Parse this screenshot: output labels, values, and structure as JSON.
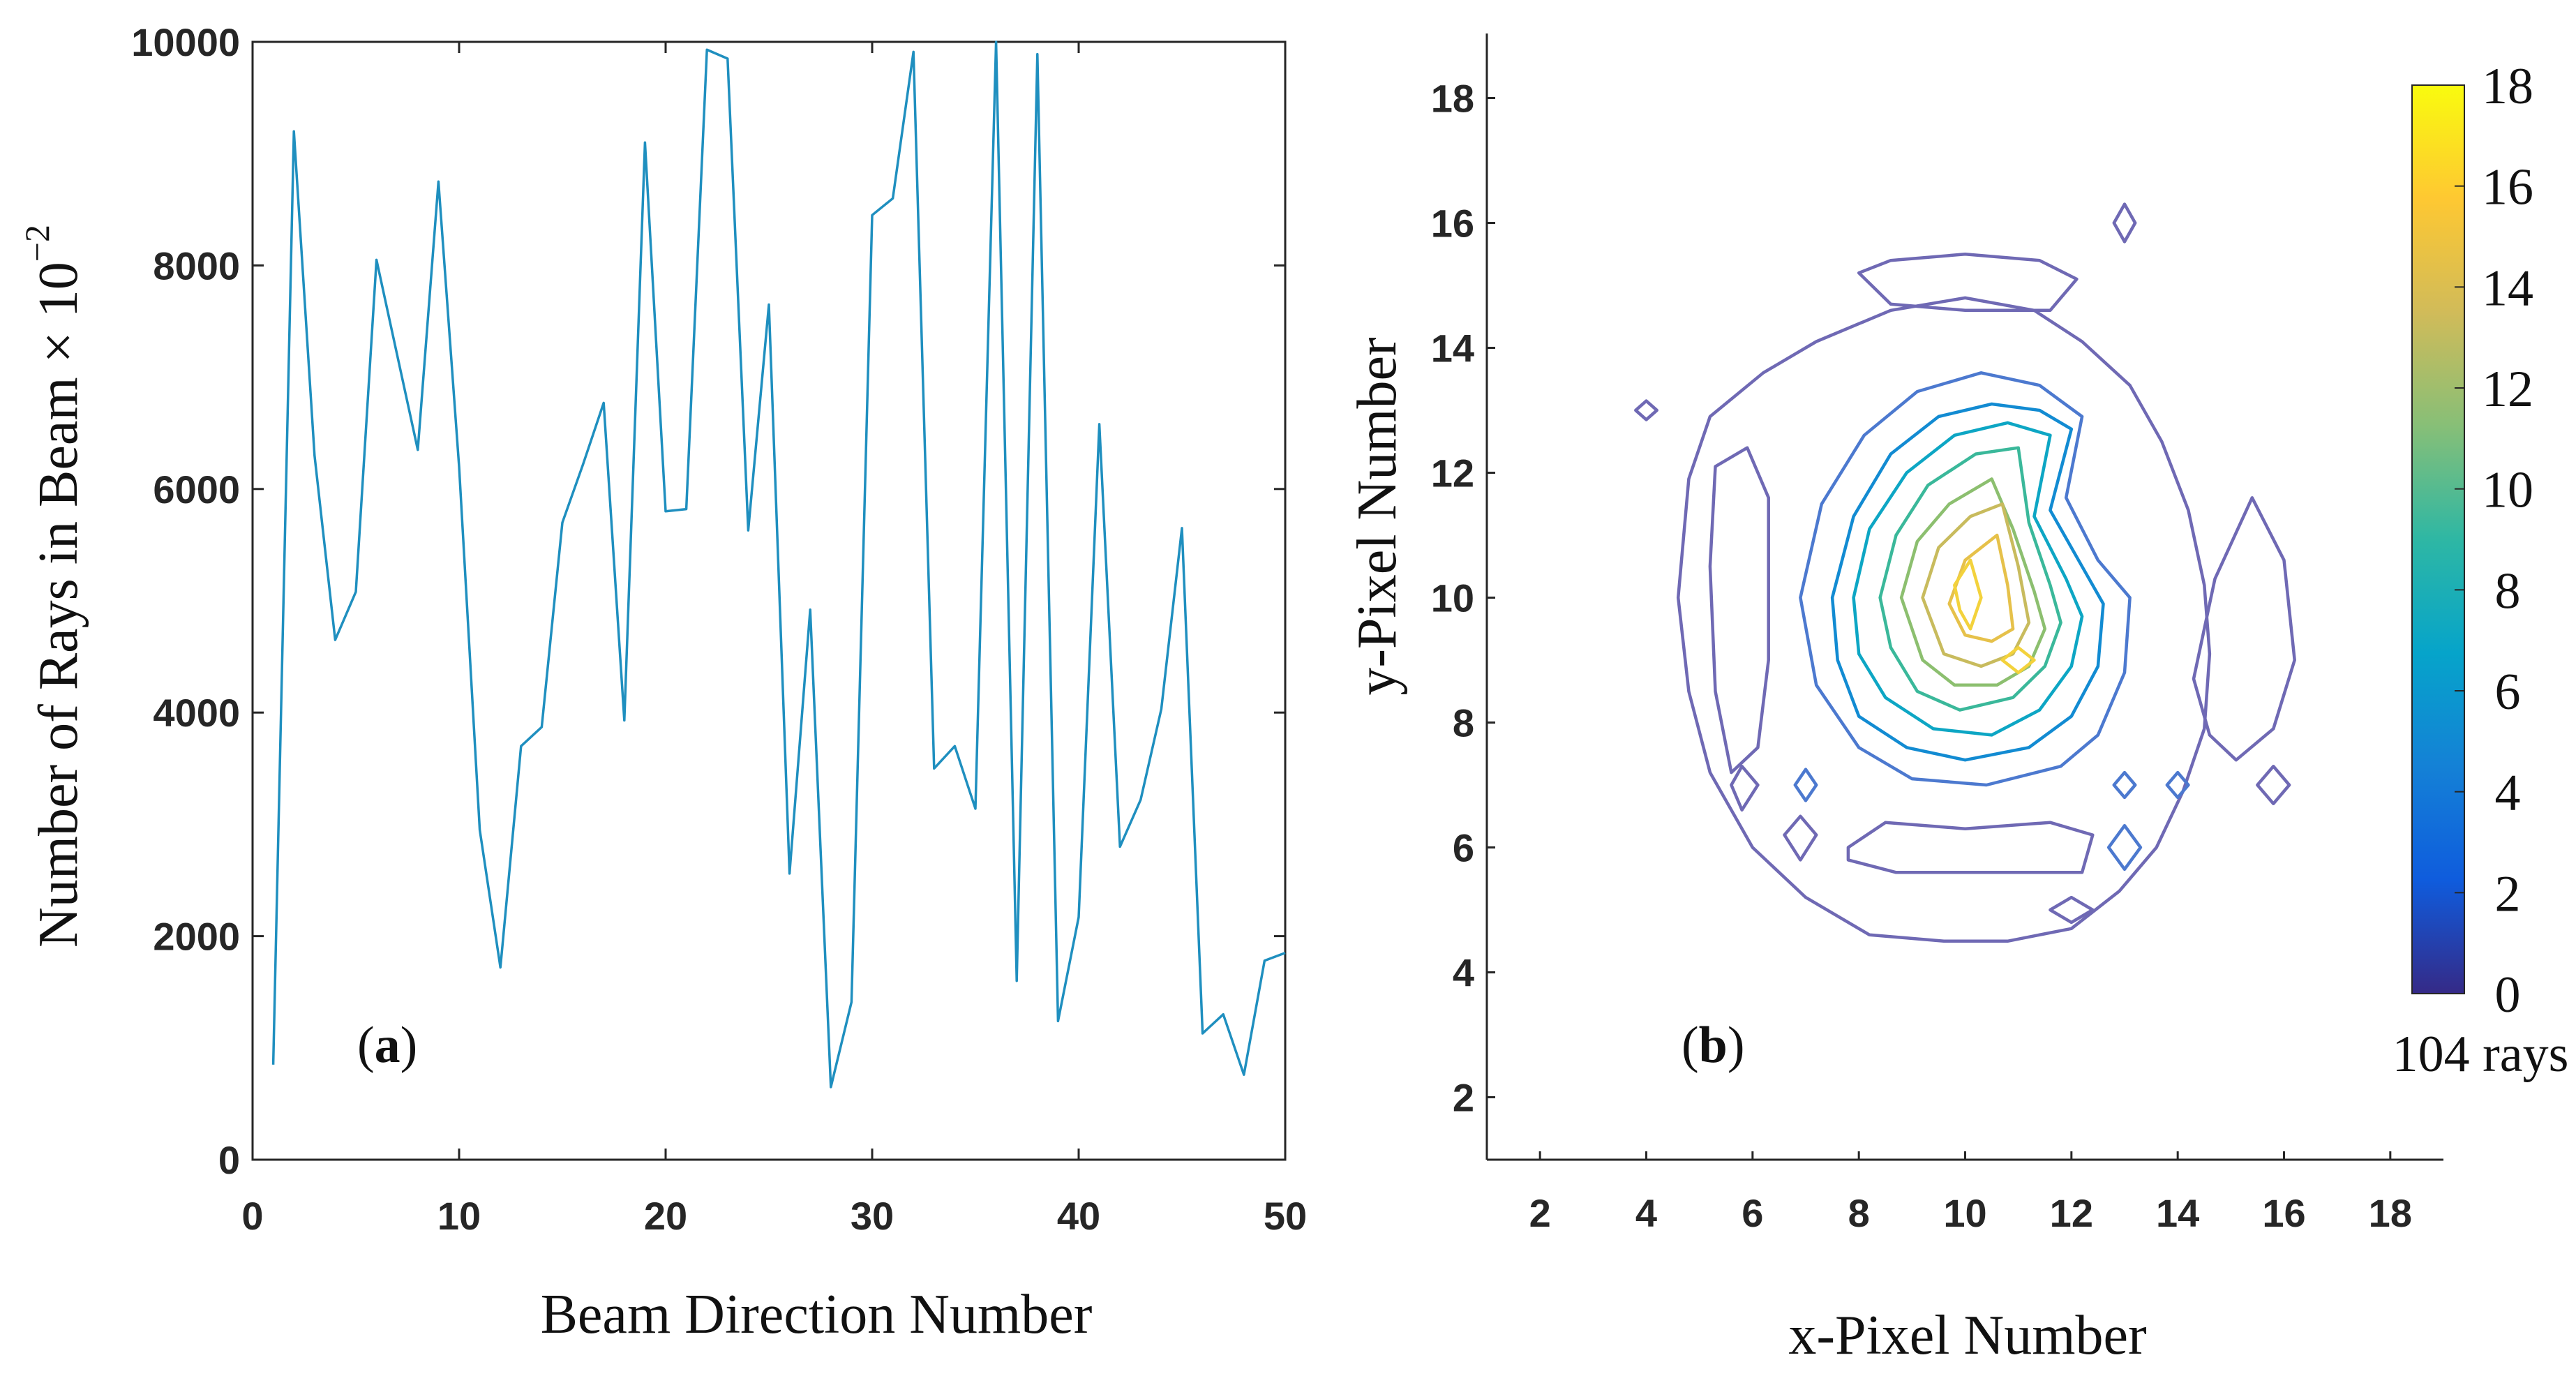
{
  "figure": {
    "panel_a": {
      "label_open": "(",
      "label_letter": "a",
      "label_close": ")"
    },
    "panel_b": {
      "label_open": "(",
      "label_letter": "b",
      "label_close": ")"
    }
  },
  "chart_data": [
    {
      "type": "line",
      "title": "",
      "xlabel": "Beam Direction Number",
      "ylabel": "Number of Rays in Beam × 10",
      "ylabel_exponent": "−2",
      "xlim": [
        0,
        50
      ],
      "ylim": [
        0,
        10000
      ],
      "xticks": [
        0,
        10,
        20,
        30,
        40,
        50
      ],
      "yticks": [
        0,
        2000,
        4000,
        6000,
        8000,
        10000
      ],
      "grid": false,
      "line_color": "#1f8fbf",
      "series": [
        {
          "name": "rays",
          "x": [
            1,
            2,
            3,
            4,
            5,
            6,
            7,
            8,
            9,
            10,
            11,
            12,
            13,
            14,
            15,
            16,
            17,
            18,
            19,
            20,
            21,
            22,
            23,
            24,
            25,
            26,
            27,
            28,
            29,
            30,
            31,
            32,
            33,
            34,
            35,
            36,
            37,
            38,
            39,
            40,
            41,
            42,
            43,
            44,
            45,
            46,
            47,
            48,
            49,
            50
          ],
          "values": [
            850,
            9200,
            6300,
            4650,
            5080,
            8050,
            7200,
            6350,
            8750,
            6200,
            2950,
            1720,
            3700,
            3870,
            5700,
            6220,
            6770,
            3930,
            9100,
            5800,
            5820,
            9930,
            9850,
            5630,
            7650,
            2560,
            4920,
            650,
            1410,
            8450,
            8600,
            9910,
            3500,
            3700,
            3140,
            10000,
            1600,
            9890,
            1240,
            2170,
            6580,
            2800,
            3220,
            4030,
            5650,
            1130,
            1300,
            760,
            1780,
            1850
          ]
        }
      ]
    },
    {
      "type": "contour",
      "title": "",
      "xlabel": "x-Pixel Number",
      "ylabel": "y-Pixel Number",
      "xlim": [
        1,
        19
      ],
      "ylim": [
        1,
        19
      ],
      "xticks": [
        2,
        4,
        6,
        8,
        10,
        12,
        14,
        16,
        18
      ],
      "yticks": [
        2,
        4,
        6,
        8,
        10,
        12,
        14,
        16,
        18
      ],
      "grid": false,
      "colormap": "parula",
      "colorbar": {
        "range": [
          0,
          18
        ],
        "ticks": [
          0,
          2,
          4,
          6,
          8,
          10,
          12,
          14,
          16,
          18
        ],
        "unit_label": "104 rays",
        "colors": [
          "#352a87",
          "#0f5cdd",
          "#1481d6",
          "#06a4ca",
          "#2eb7a4",
          "#87bf77",
          "#d1bb59",
          "#fec832",
          "#f9fb0e"
        ]
      },
      "levels": [
        {
          "level": 1,
          "color": "#6f69b4",
          "rings": [
            [
              [
                4.8,
                11.9
              ],
              [
                5.2,
                12.9
              ],
              [
                6.2,
                13.6
              ],
              [
                7.2,
                14.1
              ],
              [
                8.6,
                14.6
              ],
              [
                10,
                14.8
              ],
              [
                11.3,
                14.6
              ],
              [
                12.2,
                14.1
              ],
              [
                13.1,
                13.4
              ],
              [
                13.7,
                12.5
              ],
              [
                14.2,
                11.4
              ],
              [
                14.5,
                10.2
              ],
              [
                14.6,
                9.1
              ],
              [
                14.5,
                7.9
              ],
              [
                14.1,
                6.9
              ],
              [
                13.6,
                6
              ],
              [
                12.9,
                5.3
              ],
              [
                12,
                4.7
              ],
              [
                10.8,
                4.5
              ],
              [
                9.6,
                4.5
              ],
              [
                8.2,
                4.6
              ],
              [
                7,
                5.2
              ],
              [
                6,
                6
              ],
              [
                5.2,
                7.2
              ],
              [
                4.8,
                8.5
              ],
              [
                4.6,
                10
              ]
            ],
            [
              [
                8,
                15.2
              ],
              [
                8.6,
                15.4
              ],
              [
                10,
                15.5
              ],
              [
                11.4,
                15.4
              ],
              [
                12.1,
                15.1
              ],
              [
                11.6,
                14.6
              ],
              [
                10,
                14.6
              ],
              [
                8.6,
                14.7
              ]
            ],
            [
              [
                5.3,
                12.1
              ],
              [
                5.9,
                12.4
              ],
              [
                6.3,
                11.6
              ],
              [
                6.3,
                9
              ],
              [
                6.1,
                7.6
              ],
              [
                5.6,
                7.2
              ],
              [
                5.3,
                8.5
              ],
              [
                5.2,
                10.5
              ]
            ],
            [
              [
                14.3,
                8.7
              ],
              [
                14.7,
                10.3
              ],
              [
                15.4,
                11.6
              ],
              [
                16,
                10.6
              ],
              [
                16.2,
                9
              ],
              [
                15.8,
                7.9
              ],
              [
                15.1,
                7.4
              ],
              [
                14.6,
                7.8
              ]
            ],
            [
              [
                7.8,
                6
              ],
              [
                8.5,
                6.4
              ],
              [
                10,
                6.3
              ],
              [
                11.6,
                6.4
              ],
              [
                12.4,
                6.2
              ],
              [
                12.2,
                5.6
              ],
              [
                10.5,
                5.6
              ],
              [
                8.7,
                5.6
              ],
              [
                7.8,
                5.8
              ]
            ],
            [
              [
                11.6,
                5
              ],
              [
                12,
                5.2
              ],
              [
                12.4,
                5
              ],
              [
                12,
                4.8
              ]
            ],
            [
              [
                12.8,
                16
              ],
              [
                13,
                16.3
              ],
              [
                13.2,
                16
              ],
              [
                13,
                15.7
              ]
            ],
            [
              [
                3.8,
                13
              ],
              [
                4,
                13.15
              ],
              [
                4.2,
                13
              ],
              [
                4,
                12.85
              ]
            ],
            [
              [
                5.6,
                7
              ],
              [
                5.8,
                7.3
              ],
              [
                6.1,
                7
              ],
              [
                5.8,
                6.6
              ]
            ],
            [
              [
                6.6,
                6.2
              ],
              [
                6.9,
                6.5
              ],
              [
                7.2,
                6.2
              ],
              [
                6.9,
                5.8
              ]
            ],
            [
              [
                15.5,
                7
              ],
              [
                15.8,
                7.3
              ],
              [
                16.1,
                7
              ],
              [
                15.8,
                6.7
              ]
            ]
          ]
        },
        {
          "level": 3,
          "color": "#4c79cf",
          "rings": [
            [
              [
                6.9,
                10
              ],
              [
                7.3,
                11.5
              ],
              [
                8.1,
                12.6
              ],
              [
                9.1,
                13.3
              ],
              [
                10.3,
                13.6
              ],
              [
                11.4,
                13.4
              ],
              [
                12.2,
                12.9
              ],
              [
                11.9,
                11.6
              ],
              [
                12.5,
                10.6
              ],
              [
                13.1,
                10
              ],
              [
                13,
                8.8
              ],
              [
                12.5,
                7.8
              ],
              [
                11.8,
                7.3
              ],
              [
                10.4,
                7
              ],
              [
                9,
                7.1
              ],
              [
                8,
                7.6
              ],
              [
                7.2,
                8.6
              ]
            ],
            [
              [
                6.8,
                7
              ],
              [
                7,
                7.25
              ],
              [
                7.2,
                7
              ],
              [
                7,
                6.75
              ]
            ],
            [
              [
                12.8,
                7
              ],
              [
                13,
                7.2
              ],
              [
                13.2,
                7
              ],
              [
                13,
                6.8
              ]
            ],
            [
              [
                13.8,
                7
              ],
              [
                14,
                7.2
              ],
              [
                14.2,
                7
              ],
              [
                14,
                6.8
              ]
            ],
            [
              [
                12.7,
                6
              ],
              [
                13,
                6.35
              ],
              [
                13.3,
                6
              ],
              [
                13,
                5.65
              ]
            ]
          ]
        },
        {
          "level": 5,
          "color": "#128bd2",
          "rings": [
            [
              [
                7.5,
                10
              ],
              [
                7.9,
                11.3
              ],
              [
                8.6,
                12.3
              ],
              [
                9.5,
                12.9
              ],
              [
                10.5,
                13.1
              ],
              [
                11.4,
                13
              ],
              [
                12,
                12.7
              ],
              [
                11.6,
                11.4
              ],
              [
                12.2,
                10.5
              ],
              [
                12.6,
                9.9
              ],
              [
                12.5,
                8.9
              ],
              [
                12,
                8.1
              ],
              [
                11.2,
                7.6
              ],
              [
                10,
                7.4
              ],
              [
                8.9,
                7.6
              ],
              [
                8,
                8.1
              ],
              [
                7.6,
                9
              ]
            ]
          ]
        },
        {
          "level": 7,
          "color": "#0da6c4",
          "rings": [
            [
              [
                7.9,
                10
              ],
              [
                8.2,
                11.1
              ],
              [
                8.9,
                12
              ],
              [
                9.8,
                12.6
              ],
              [
                10.8,
                12.8
              ],
              [
                11.6,
                12.6
              ],
              [
                11.3,
                11.3
              ],
              [
                11.9,
                10.3
              ],
              [
                12.2,
                9.7
              ],
              [
                12,
                8.9
              ],
              [
                11.4,
                8.2
              ],
              [
                10.5,
                7.8
              ],
              [
                9.4,
                7.9
              ],
              [
                8.5,
                8.4
              ],
              [
                8,
                9.1
              ]
            ]
          ]
        },
        {
          "level": 9,
          "color": "#3ab89a",
          "rings": [
            [
              [
                8.4,
                10
              ],
              [
                8.7,
                11
              ],
              [
                9.3,
                11.8
              ],
              [
                10.2,
                12.3
              ],
              [
                11,
                12.4
              ],
              [
                11.2,
                11.2
              ],
              [
                11.6,
                10.2
              ],
              [
                11.8,
                9.6
              ],
              [
                11.5,
                8.9
              ],
              [
                10.9,
                8.4
              ],
              [
                9.9,
                8.2
              ],
              [
                9.1,
                8.5
              ],
              [
                8.6,
                9.2
              ]
            ]
          ]
        },
        {
          "level": 11,
          "color": "#8cbf6f",
          "rings": [
            [
              [
                8.8,
                10
              ],
              [
                9.1,
                10.9
              ],
              [
                9.7,
                11.5
              ],
              [
                10.5,
                11.9
              ],
              [
                10.9,
                11.1
              ],
              [
                11.3,
                10.1
              ],
              [
                11.5,
                9.5
              ],
              [
                11.2,
                8.9
              ],
              [
                10.6,
                8.6
              ],
              [
                9.8,
                8.6
              ],
              [
                9.2,
                9
              ]
            ]
          ]
        },
        {
          "level": 13,
          "color": "#c8bb5d",
          "rings": [
            [
              [
                9.2,
                10
              ],
              [
                9.5,
                10.8
              ],
              [
                10.1,
                11.3
              ],
              [
                10.7,
                11.5
              ],
              [
                11,
                10.5
              ],
              [
                11.2,
                9.6
              ],
              [
                10.9,
                9.1
              ],
              [
                10.3,
                8.9
              ],
              [
                9.6,
                9.1
              ]
            ]
          ]
        },
        {
          "level": 15,
          "color": "#e6c14a",
          "rings": [
            [
              [
                9.7,
                9.9
              ],
              [
                10,
                10.6
              ],
              [
                10.6,
                11
              ],
              [
                10.8,
                10.2
              ],
              [
                10.9,
                9.5
              ],
              [
                10.5,
                9.3
              ],
              [
                10,
                9.4
              ]
            ]
          ]
        },
        {
          "level": 17,
          "color": "#f3d23c",
          "rings": [
            [
              [
                9.8,
                10.2
              ],
              [
                10.1,
                10.6
              ],
              [
                10.3,
                10
              ],
              [
                10.1,
                9.5
              ],
              [
                9.9,
                9.8
              ]
            ],
            [
              [
                10.7,
                9
              ],
              [
                11,
                9.2
              ],
              [
                11.3,
                9
              ],
              [
                11,
                8.8
              ]
            ]
          ]
        }
      ]
    }
  ]
}
